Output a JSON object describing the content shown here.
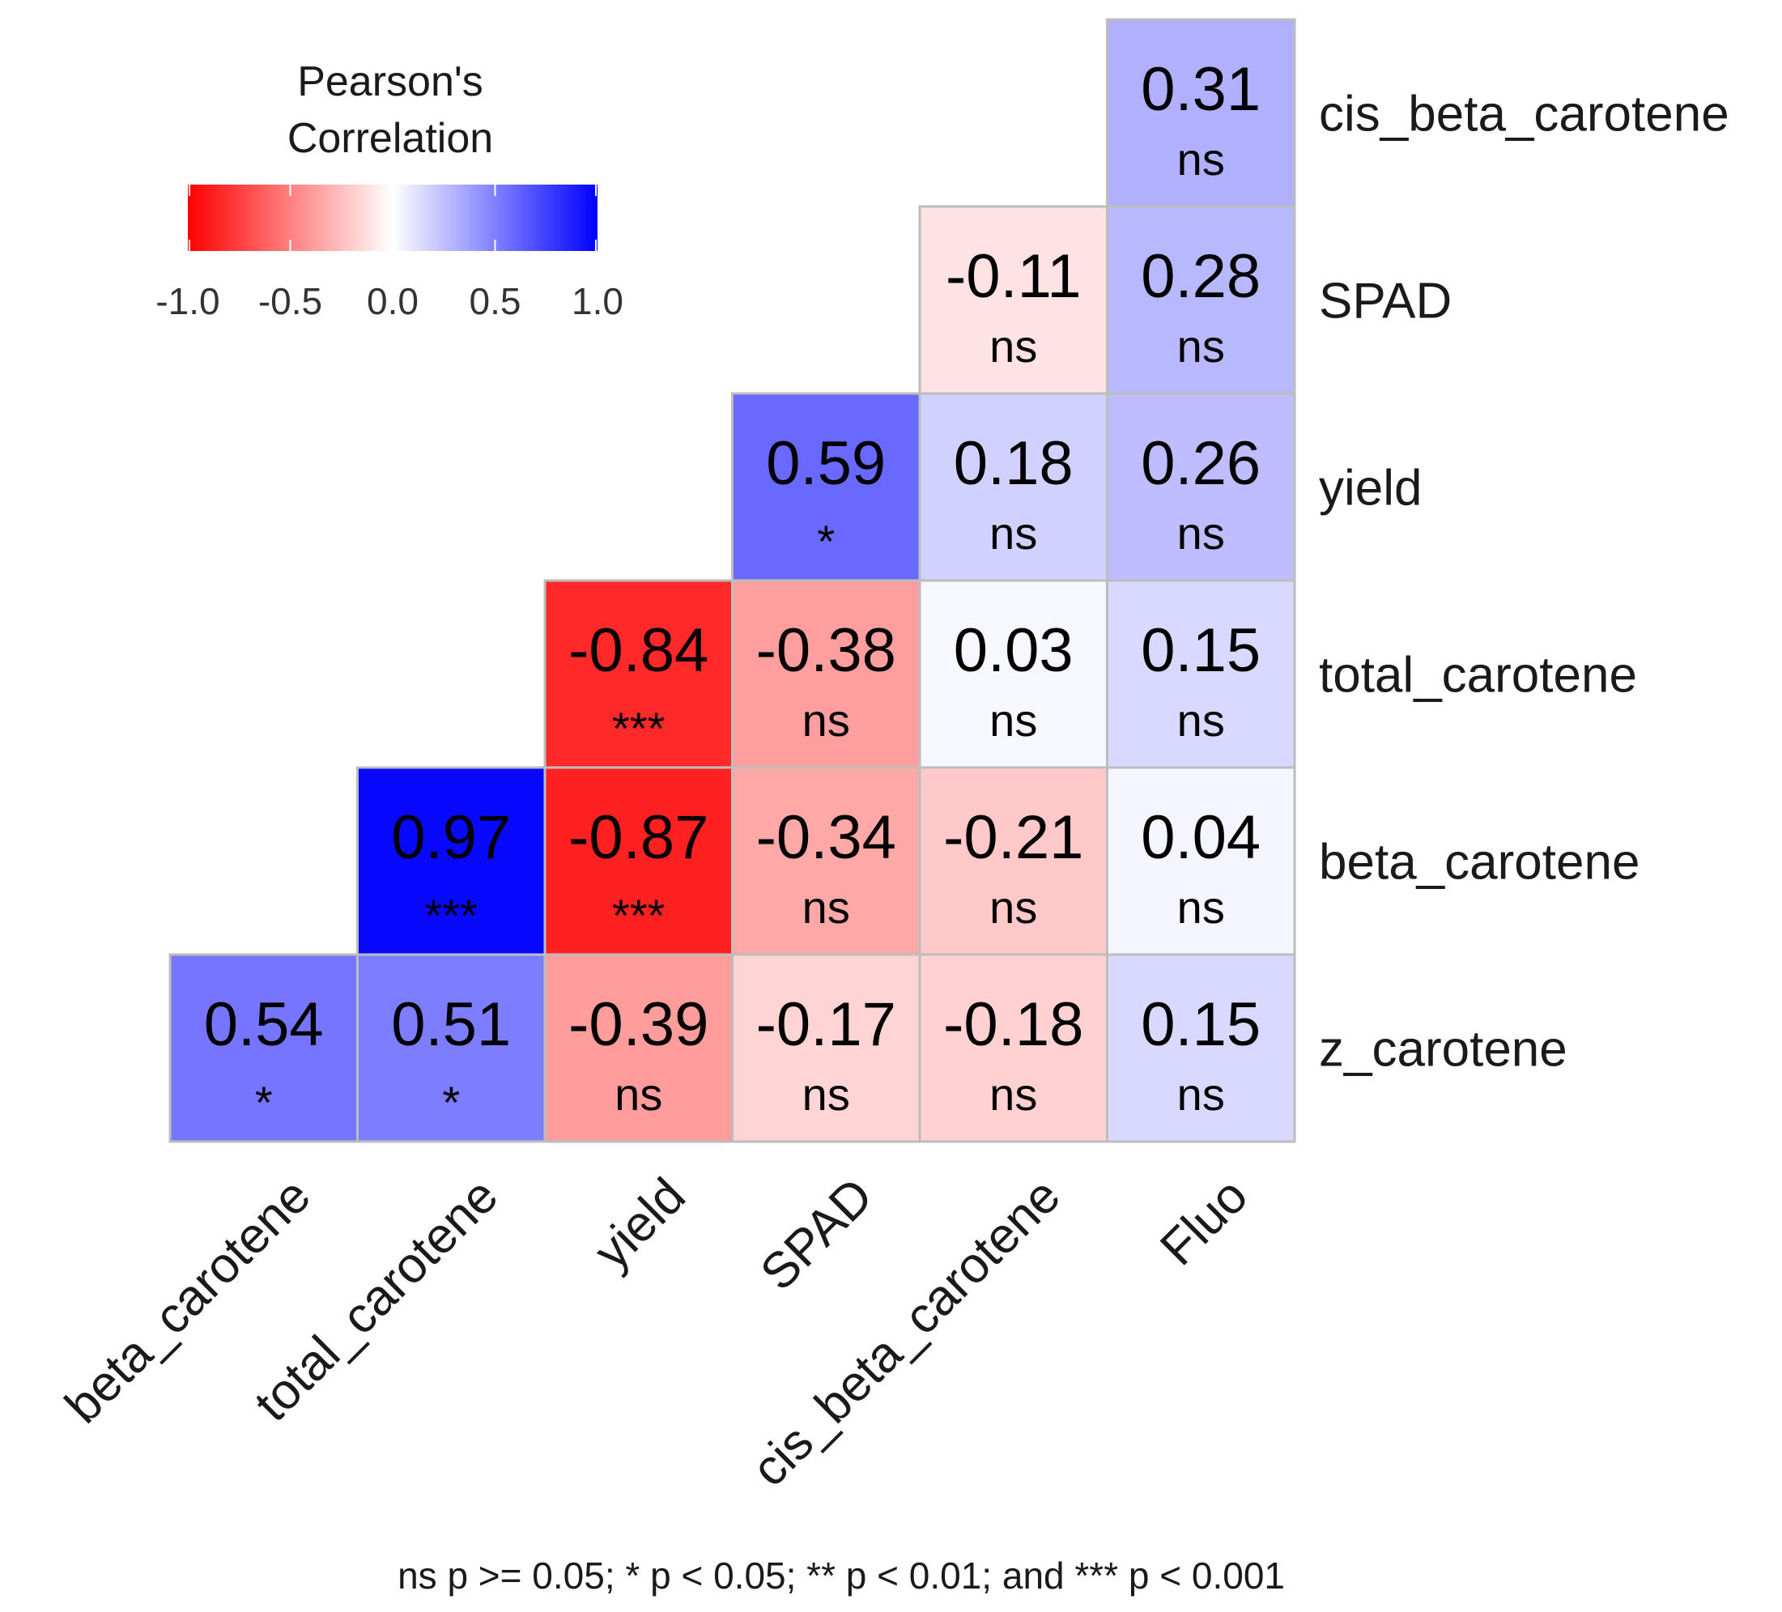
{
  "chart_data": {
    "type": "heatmap",
    "legend": {
      "title_lines": [
        "Pearson's",
        "Correlation"
      ],
      "ticks": [
        "-1.0",
        "-0.5",
        "0.0",
        "0.5",
        "1.0"
      ],
      "tick_values": [
        -1.0,
        -0.5,
        0.0,
        0.5,
        1.0
      ],
      "range": [
        -1.0,
        1.0
      ],
      "colors": {
        "low": "#FF0000",
        "mid": "#FFFFFF",
        "high": "#0000FF"
      },
      "placement": "top-left"
    },
    "columns": [
      "beta_carotene",
      "total_carotene",
      "yield",
      "SPAD",
      "cis_beta_carotene",
      "Fluo"
    ],
    "rows": [
      "cis_beta_carotene",
      "SPAD",
      "yield",
      "total_carotene",
      "beta_carotene",
      "z_carotene"
    ],
    "cells": [
      {
        "row": 0,
        "col": 5,
        "label": "0.31",
        "value": 0.31,
        "sig": "ns"
      },
      {
        "row": 1,
        "col": 4,
        "label": "-0.11",
        "value": -0.11,
        "sig": "ns"
      },
      {
        "row": 1,
        "col": 5,
        "label": "0.28",
        "value": 0.28,
        "sig": "ns"
      },
      {
        "row": 2,
        "col": 3,
        "label": "0.59",
        "value": 0.59,
        "sig": "*"
      },
      {
        "row": 2,
        "col": 4,
        "label": "0.18",
        "value": 0.18,
        "sig": "ns"
      },
      {
        "row": 2,
        "col": 5,
        "label": "0.26",
        "value": 0.26,
        "sig": "ns"
      },
      {
        "row": 3,
        "col": 2,
        "label": "-0.84",
        "value": -0.84,
        "sig": "***"
      },
      {
        "row": 3,
        "col": 3,
        "label": "-0.38",
        "value": -0.38,
        "sig": "ns"
      },
      {
        "row": 3,
        "col": 4,
        "label": "0.03",
        "value": 0.03,
        "sig": "ns"
      },
      {
        "row": 3,
        "col": 5,
        "label": "0.15",
        "value": 0.15,
        "sig": "ns"
      },
      {
        "row": 4,
        "col": 1,
        "label": "0.97",
        "value": 0.97,
        "sig": "***"
      },
      {
        "row": 4,
        "col": 2,
        "label": "-0.87",
        "value": -0.87,
        "sig": "***"
      },
      {
        "row": 4,
        "col": 3,
        "label": "-0.34",
        "value": -0.34,
        "sig": "ns"
      },
      {
        "row": 4,
        "col": 4,
        "label": "-0.21",
        "value": -0.21,
        "sig": "ns"
      },
      {
        "row": 4,
        "col": 5,
        "label": "0.04",
        "value": 0.04,
        "sig": "ns"
      },
      {
        "row": 5,
        "col": 0,
        "label": "0.54",
        "value": 0.54,
        "sig": "*"
      },
      {
        "row": 5,
        "col": 1,
        "label": "0.51",
        "value": 0.51,
        "sig": "*"
      },
      {
        "row": 5,
        "col": 2,
        "label": "-0.39",
        "value": -0.39,
        "sig": "ns"
      },
      {
        "row": 5,
        "col": 3,
        "label": "-0.17",
        "value": -0.17,
        "sig": "ns"
      },
      {
        "row": 5,
        "col": 4,
        "label": "-0.18",
        "value": -0.18,
        "sig": "ns"
      },
      {
        "row": 5,
        "col": 5,
        "label": "0.15",
        "value": 0.15,
        "sig": "ns"
      }
    ],
    "footnote": "ns p >= 0.05; * p < 0.05; ** p < 0.01; and *** p < 0.001"
  }
}
